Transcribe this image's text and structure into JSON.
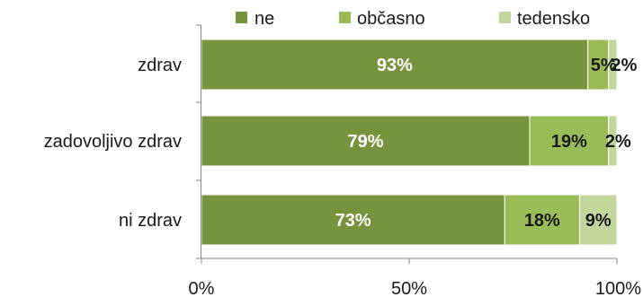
{
  "chart_data": {
    "type": "bar",
    "orientation": "horizontal",
    "stacked": "percent",
    "categories": [
      "zdrav",
      "zadovoljivo zdrav",
      "ni zdrav"
    ],
    "series": [
      {
        "name": "ne",
        "values": [
          93,
          79,
          73
        ],
        "labels": [
          "93%",
          "79%",
          "73%"
        ],
        "color": "#77933c"
      },
      {
        "name": "občasno",
        "values": [
          5,
          19,
          18
        ],
        "labels": [
          "5%",
          "19%",
          "18%"
        ],
        "color": "#9bbb59"
      },
      {
        "name": "tedensko",
        "values": [
          2,
          2,
          9
        ],
        "labels": [
          "2%",
          "2%",
          "9%"
        ],
        "color": "#c3d69b"
      }
    ],
    "x_ticks": [
      "0%",
      "50%",
      "100%"
    ],
    "xlim": [
      0,
      100
    ],
    "legend_position": "top",
    "grid": false,
    "title": "",
    "xlabel": "",
    "ylabel": ""
  }
}
